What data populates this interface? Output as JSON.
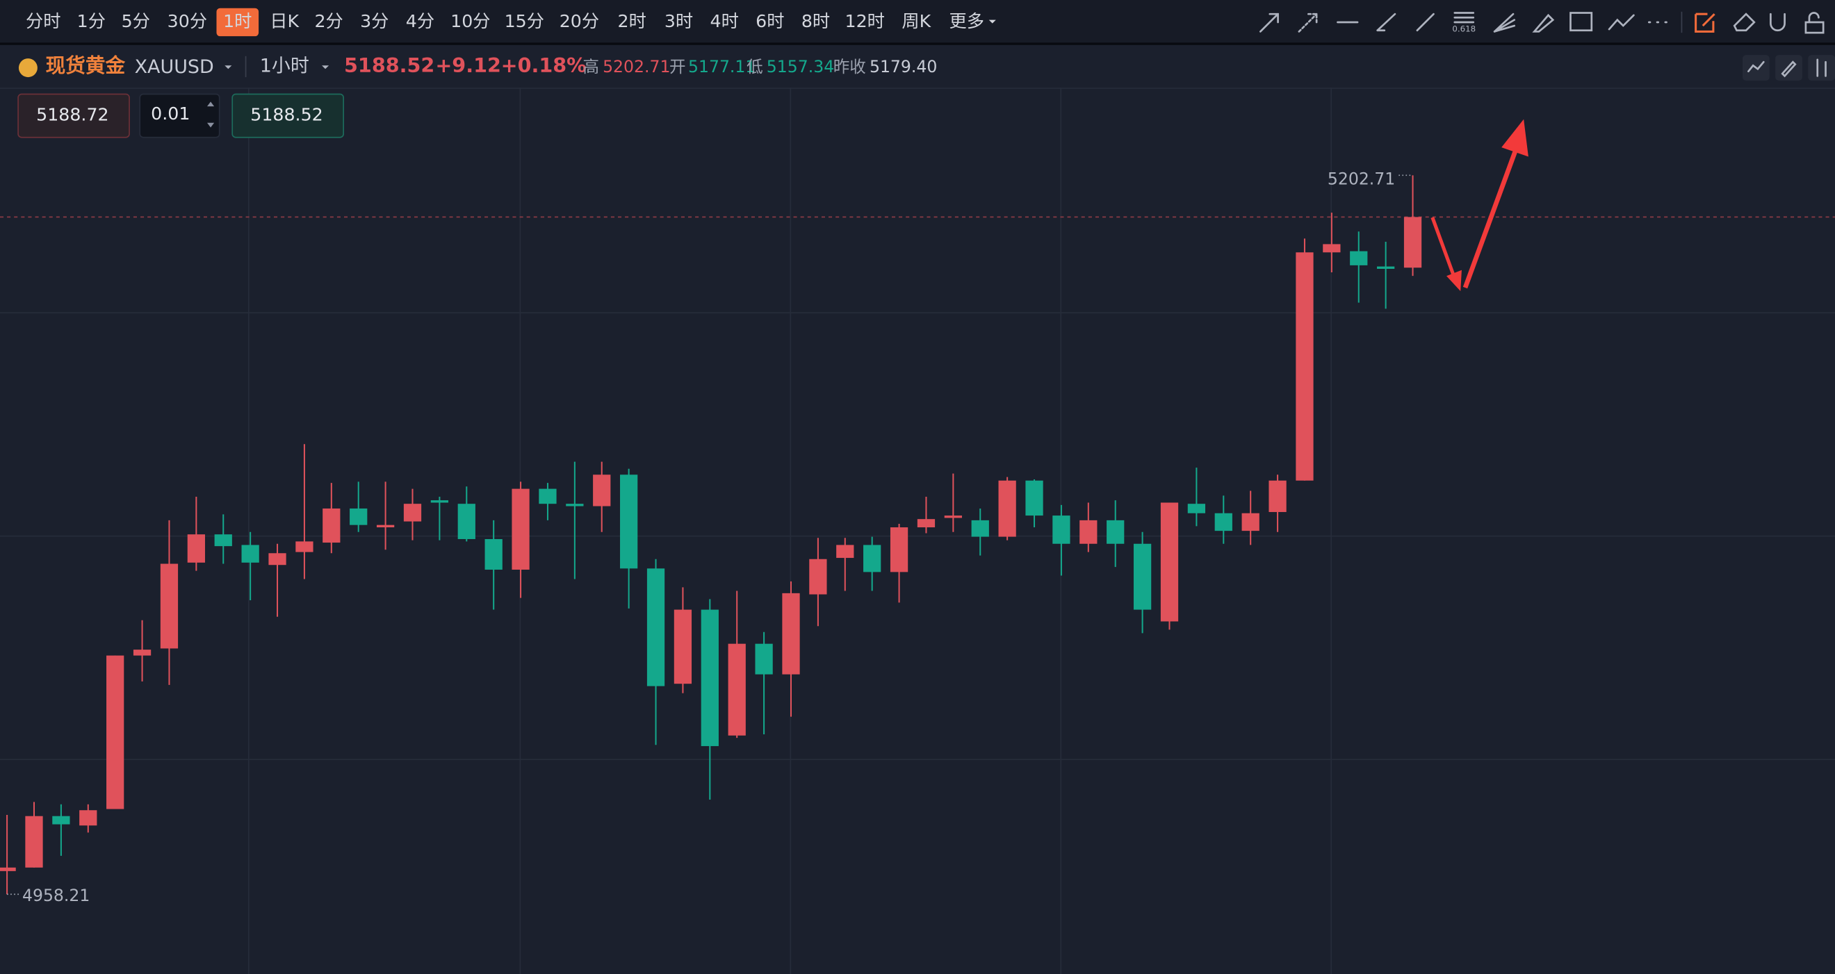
{
  "toolbar": {
    "items": [
      "分时",
      "1分",
      "5分",
      "30分",
      "1时",
      "日K",
      "2分",
      "3分",
      "4分",
      "10分",
      "15分",
      "20分",
      "2时",
      "3时",
      "4时",
      "6时",
      "8时",
      "12时",
      "周K",
      "更多"
    ],
    "active": "1时",
    "fib_label": "0.618"
  },
  "header": {
    "name": "现货黄金",
    "symbol": "XAUUSD",
    "interval": "1小时",
    "price": "5188.52",
    "change": "+9.12",
    "change_pct": "+0.18%",
    "high_label": "高",
    "high": "5202.71",
    "open_label": "开",
    "open": "5177.11",
    "low_label": "低",
    "low": "5157.34",
    "prev_close_label": "昨收",
    "prev_close": "5179.40"
  },
  "order": {
    "sell": "5188.72",
    "quantity": "0.01",
    "buy": "5188.52"
  },
  "chart_data": {
    "type": "candlestick",
    "up_color": "#e0525b",
    "down_color": "#14a88c",
    "ylim": [
      4931.1,
      5232.5
    ],
    "open": [
      4966.1,
      4967.3,
      4984.8,
      4981.6,
      4987.2,
      5039.4,
      5041.8,
      5071.0,
      5080.6,
      5077.0,
      5070.2,
      5074.6,
      5077.8,
      5089.4,
      5083.0,
      5085.0,
      5092.2,
      5091.0,
      5079.0,
      5068.6,
      5096.1,
      5091.0,
      5090.2,
      5100.9,
      5069.0,
      5029.8,
      5055.0,
      5012.2,
      5043.4,
      5033.0,
      5060.2,
      5072.6,
      5077.0,
      5067.8,
      5083.0,
      5086.2,
      5085.4,
      5079.8,
      5098.9,
      5087.0,
      5077.4,
      5085.4,
      5077.4,
      5051.0,
      5091.0,
      5087.8,
      5081.8,
      5088.2,
      5098.9,
      5176.5,
      5176.9,
      5171.7,
      5171.3
    ],
    "high": [
      4985.2,
      4989.6,
      4988.8,
      4988.8,
      5039.4,
      5051.4,
      5085.4,
      5093.4,
      5087.4,
      5081.4,
      5077.4,
      5111.3,
      5098.1,
      5098.5,
      5098.5,
      5096.1,
      5093.4,
      5096.9,
      5085.4,
      5098.5,
      5098.1,
      5105.3,
      5105.3,
      5102.9,
      5072.2,
      5062.6,
      5058.6,
      5061.4,
      5047.4,
      5064.6,
      5079.4,
      5079.4,
      5079.8,
      5084.2,
      5093.4,
      5101.3,
      5089.4,
      5100.1,
      5099.3,
      5090.6,
      5091.4,
      5092.2,
      5081.4,
      5091.4,
      5103.3,
      5093.8,
      5095.4,
      5100.9,
      5181.2,
      5190.0,
      5183.6,
      5180.1,
      5202.71
    ],
    "low": [
      4958.21,
      4967.3,
      4971.3,
      4979.2,
      4987.2,
      5030.6,
      5029.4,
      5068.2,
      5070.6,
      5058.2,
      5052.6,
      5065.4,
      5074.2,
      5081.4,
      5075.4,
      5078.6,
      5078.6,
      5078.2,
      5055.0,
      5059.0,
      5085.4,
      5065.4,
      5081.4,
      5055.4,
      5009.0,
      5026.6,
      4990.4,
      5011.4,
      5012.6,
      5018.6,
      5049.4,
      5061.4,
      5061.4,
      5057.4,
      5081.0,
      5081.4,
      5073.4,
      5078.6,
      5083.0,
      5066.6,
      5074.6,
      5069.5,
      5047.0,
      5048.2,
      5083.4,
      5077.4,
      5077.0,
      5081.4,
      5098.9,
      5169.7,
      5159.4,
      5157.34,
      5168.5
    ],
    "close": [
      4967.3,
      4984.8,
      4982.0,
      4986.8,
      5039.4,
      5041.4,
      5070.6,
      5080.6,
      5076.6,
      5071.0,
      5074.2,
      5078.2,
      5089.4,
      5083.8,
      5083.8,
      5091.0,
      5091.4,
      5079.0,
      5068.6,
      5096.1,
      5091.0,
      5090.2,
      5100.9,
      5069.0,
      5029.0,
      5055.0,
      5008.6,
      5043.4,
      5033.0,
      5060.6,
      5072.2,
      5077.0,
      5067.8,
      5083.0,
      5085.8,
      5087.0,
      5079.8,
      5098.9,
      5087.0,
      5077.4,
      5085.4,
      5077.4,
      5055.0,
      5091.4,
      5087.8,
      5081.8,
      5087.8,
      5098.9,
      5176.5,
      5179.3,
      5172.1,
      5170.9,
      5188.52
    ],
    "last_price": 5188.52,
    "high_marker": 5202.71,
    "low_marker": 4958.21
  }
}
